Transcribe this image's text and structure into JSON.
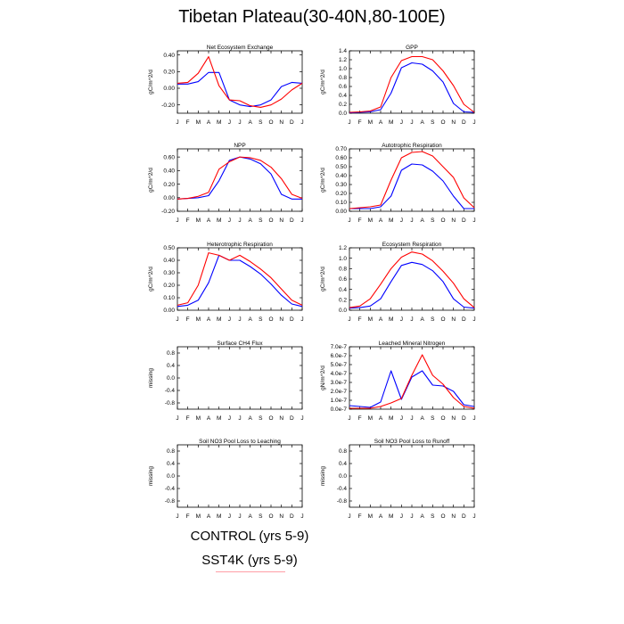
{
  "page_title": "Tibetan Plateau(30-40N,80-100E)",
  "colors": {
    "control": "#0000ff",
    "sst4k": "#ff0000",
    "axis": "#000000"
  },
  "legend": {
    "control_label": "CONTROL (yrs 5-9)",
    "sst4k_label": "SST4K (yrs 5-9)"
  },
  "chart_data": [
    {
      "type": "line",
      "title": "Net Ecosystem Exchange",
      "ylabel": "gC/m^2/d",
      "ylim": [
        -0.3,
        0.45
      ],
      "yticks": [
        -0.2,
        0,
        0.2,
        0.4
      ],
      "ytick_labels": [
        "-0.20",
        "0.00",
        "0.20",
        "0.40"
      ],
      "x": [
        "J",
        "F",
        "M",
        "A",
        "M",
        "J",
        "J",
        "A",
        "S",
        "O",
        "N",
        "D",
        "J"
      ],
      "series": [
        {
          "values": [
            0.05,
            0.05,
            0.08,
            0.19,
            0.19,
            -0.14,
            -0.2,
            -0.22,
            -0.2,
            -0.14,
            0.02,
            0.07,
            0.06
          ]
        },
        {
          "values": [
            0.06,
            0.07,
            0.18,
            0.38,
            0.03,
            -0.14,
            -0.15,
            -0.21,
            -0.23,
            -0.2,
            -0.13,
            -0.02,
            0.06
          ]
        }
      ]
    },
    {
      "type": "line",
      "title": "GPP",
      "ylabel": "gC/m^2/d",
      "ylim": [
        0,
        1.4
      ],
      "yticks": [
        0,
        0.2,
        0.4,
        0.6,
        0.8,
        1.0,
        1.2,
        1.4
      ],
      "ytick_labels": [
        "0.0",
        "0.2",
        "0.4",
        "0.6",
        "0.8",
        "1.0",
        "1.2",
        "1.4"
      ],
      "x": [
        "J",
        "F",
        "M",
        "A",
        "M",
        "J",
        "J",
        "A",
        "S",
        "O",
        "N",
        "D",
        "J"
      ],
      "series": [
        {
          "values": [
            0.01,
            0.02,
            0.03,
            0.08,
            0.45,
            1.02,
            1.13,
            1.1,
            0.95,
            0.7,
            0.22,
            0.03,
            0.02
          ]
        },
        {
          "values": [
            0.02,
            0.03,
            0.05,
            0.14,
            0.8,
            1.18,
            1.27,
            1.27,
            1.2,
            0.95,
            0.62,
            0.2,
            0.02
          ]
        }
      ]
    },
    {
      "type": "line",
      "title": "NPP",
      "ylabel": "gC/m^2/d",
      "ylim": [
        -0.2,
        0.72
      ],
      "yticks": [
        -0.2,
        0,
        0.2,
        0.4,
        0.6
      ],
      "ytick_labels": [
        "-0.20",
        "0.00",
        "0.20",
        "0.40",
        "0.60"
      ],
      "x": [
        "J",
        "F",
        "M",
        "A",
        "M",
        "J",
        "J",
        "A",
        "S",
        "O",
        "N",
        "D",
        "J"
      ],
      "series": [
        {
          "values": [
            -0.02,
            -0.01,
            0.0,
            0.03,
            0.25,
            0.55,
            0.6,
            0.57,
            0.5,
            0.35,
            0.05,
            -0.02,
            -0.02
          ]
        },
        {
          "values": [
            -0.02,
            -0.01,
            0.02,
            0.08,
            0.42,
            0.53,
            0.6,
            0.59,
            0.55,
            0.45,
            0.28,
            0.05,
            -0.01
          ]
        }
      ]
    },
    {
      "type": "line",
      "title": "Autotrophic Respiration",
      "ylabel": "gC/m^2/d",
      "ylim": [
        0,
        0.7
      ],
      "yticks": [
        0,
        0.1,
        0.2,
        0.3,
        0.4,
        0.5,
        0.6,
        0.7
      ],
      "ytick_labels": [
        "0.00",
        "0.10",
        "0.20",
        "0.30",
        "0.40",
        "0.50",
        "0.60",
        "0.70"
      ],
      "x": [
        "J",
        "F",
        "M",
        "A",
        "M",
        "J",
        "J",
        "A",
        "S",
        "O",
        "N",
        "D",
        "J"
      ],
      "series": [
        {
          "values": [
            0.03,
            0.03,
            0.03,
            0.05,
            0.17,
            0.46,
            0.53,
            0.52,
            0.45,
            0.34,
            0.17,
            0.03,
            0.03
          ]
        },
        {
          "values": [
            0.03,
            0.04,
            0.05,
            0.07,
            0.35,
            0.6,
            0.66,
            0.67,
            0.62,
            0.5,
            0.38,
            0.15,
            0.04
          ]
        }
      ]
    },
    {
      "type": "line",
      "title": "Heterotrophic Respiration",
      "ylabel": "gC/m^2/d",
      "ylim": [
        0,
        0.5
      ],
      "yticks": [
        0,
        0.1,
        0.2,
        0.3,
        0.4,
        0.5
      ],
      "ytick_labels": [
        "0.00",
        "0.10",
        "0.20",
        "0.30",
        "0.40",
        "0.50"
      ],
      "x": [
        "J",
        "F",
        "M",
        "A",
        "M",
        "J",
        "J",
        "A",
        "S",
        "O",
        "N",
        "D",
        "J"
      ],
      "series": [
        {
          "values": [
            0.03,
            0.04,
            0.08,
            0.22,
            0.44,
            0.4,
            0.4,
            0.35,
            0.29,
            0.21,
            0.12,
            0.05,
            0.03
          ]
        },
        {
          "values": [
            0.04,
            0.06,
            0.2,
            0.46,
            0.44,
            0.4,
            0.44,
            0.39,
            0.33,
            0.26,
            0.17,
            0.08,
            0.04
          ]
        }
      ]
    },
    {
      "type": "line",
      "title": "Ecosystem Respiration",
      "ylabel": "gC/m^2/d",
      "ylim": [
        0,
        1.2
      ],
      "yticks": [
        0,
        0.2,
        0.4,
        0.6,
        0.8,
        1.0,
        1.2
      ],
      "ytick_labels": [
        "0.0",
        "0.2",
        "0.4",
        "0.6",
        "0.8",
        "1.0",
        "1.2"
      ],
      "x": [
        "J",
        "F",
        "M",
        "A",
        "M",
        "J",
        "J",
        "A",
        "S",
        "O",
        "N",
        "D",
        "J"
      ],
      "series": [
        {
          "values": [
            0.04,
            0.05,
            0.08,
            0.22,
            0.55,
            0.86,
            0.92,
            0.88,
            0.76,
            0.55,
            0.22,
            0.06,
            0.04
          ]
        },
        {
          "values": [
            0.05,
            0.08,
            0.22,
            0.5,
            0.8,
            1.02,
            1.12,
            1.08,
            0.95,
            0.75,
            0.52,
            0.22,
            0.05
          ]
        }
      ]
    },
    {
      "type": "line",
      "title": "Surface CH4 Flux",
      "ylabel": "missing",
      "ylim": [
        -1,
        1
      ],
      "yticks": [
        -0.8,
        -0.4,
        0,
        0.4,
        0.8
      ],
      "ytick_labels": [
        "-0.8",
        "-0.4",
        "0.0",
        "0.4",
        "0.8"
      ],
      "x": [
        "J",
        "F",
        "M",
        "A",
        "M",
        "J",
        "J",
        "A",
        "S",
        "O",
        "N",
        "D",
        "J"
      ],
      "series": []
    },
    {
      "type": "line",
      "title": "Leached Mineral Nitrogen",
      "ylabel": "gN/m^2/d",
      "ylim": [
        0,
        7e-07
      ],
      "yticks": [
        0,
        1e-07,
        2e-07,
        3e-07,
        4e-07,
        5e-07,
        6e-07,
        7e-07
      ],
      "ytick_labels": [
        "0.0e-7",
        "1.0e-7",
        "2.0e-7",
        "3.0e-7",
        "4.0e-7",
        "5.0e-7",
        "6.0e-7",
        "7.0e-7"
      ],
      "x": [
        "J",
        "F",
        "M",
        "A",
        "M",
        "J",
        "J",
        "A",
        "S",
        "O",
        "N",
        "D",
        "J"
      ],
      "series": [
        {
          "values": [
            4e-08,
            3e-08,
            2e-08,
            8e-08,
            4.3e-07,
            1.1e-07,
            3.6e-07,
            4.3e-07,
            2.7e-07,
            2.6e-07,
            2e-07,
            5e-08,
            3e-08
          ]
        },
        {
          "values": [
            1e-08,
            1e-08,
            1e-08,
            3e-08,
            7e-08,
            1.2e-07,
            3.8e-07,
            6.1e-07,
            3.8e-07,
            2.8e-07,
            1.3e-07,
            3e-08,
            1e-08
          ]
        }
      ]
    },
    {
      "type": "line",
      "title": "Soil NO3 Pool Loss to Leaching",
      "ylabel": "missing",
      "ylim": [
        -1,
        1
      ],
      "yticks": [
        -0.8,
        -0.4,
        0,
        0.4,
        0.8
      ],
      "ytick_labels": [
        "-0.8",
        "-0.4",
        "0.0",
        "0.4",
        "0.8"
      ],
      "x": [
        "J",
        "F",
        "M",
        "A",
        "M",
        "J",
        "J",
        "A",
        "S",
        "O",
        "N",
        "D",
        "J"
      ],
      "series": []
    },
    {
      "type": "line",
      "title": "Soil NO3 Pool Loss to Runoff",
      "ylabel": "missing",
      "ylim": [
        -1,
        1
      ],
      "yticks": [
        -0.8,
        -0.4,
        0,
        0.4,
        0.8
      ],
      "ytick_labels": [
        "-0.8",
        "-0.4",
        "0.0",
        "0.4",
        "0.8"
      ],
      "x": [
        "J",
        "F",
        "M",
        "A",
        "M",
        "J",
        "J",
        "A",
        "S",
        "O",
        "N",
        "D",
        "J"
      ],
      "series": []
    }
  ]
}
